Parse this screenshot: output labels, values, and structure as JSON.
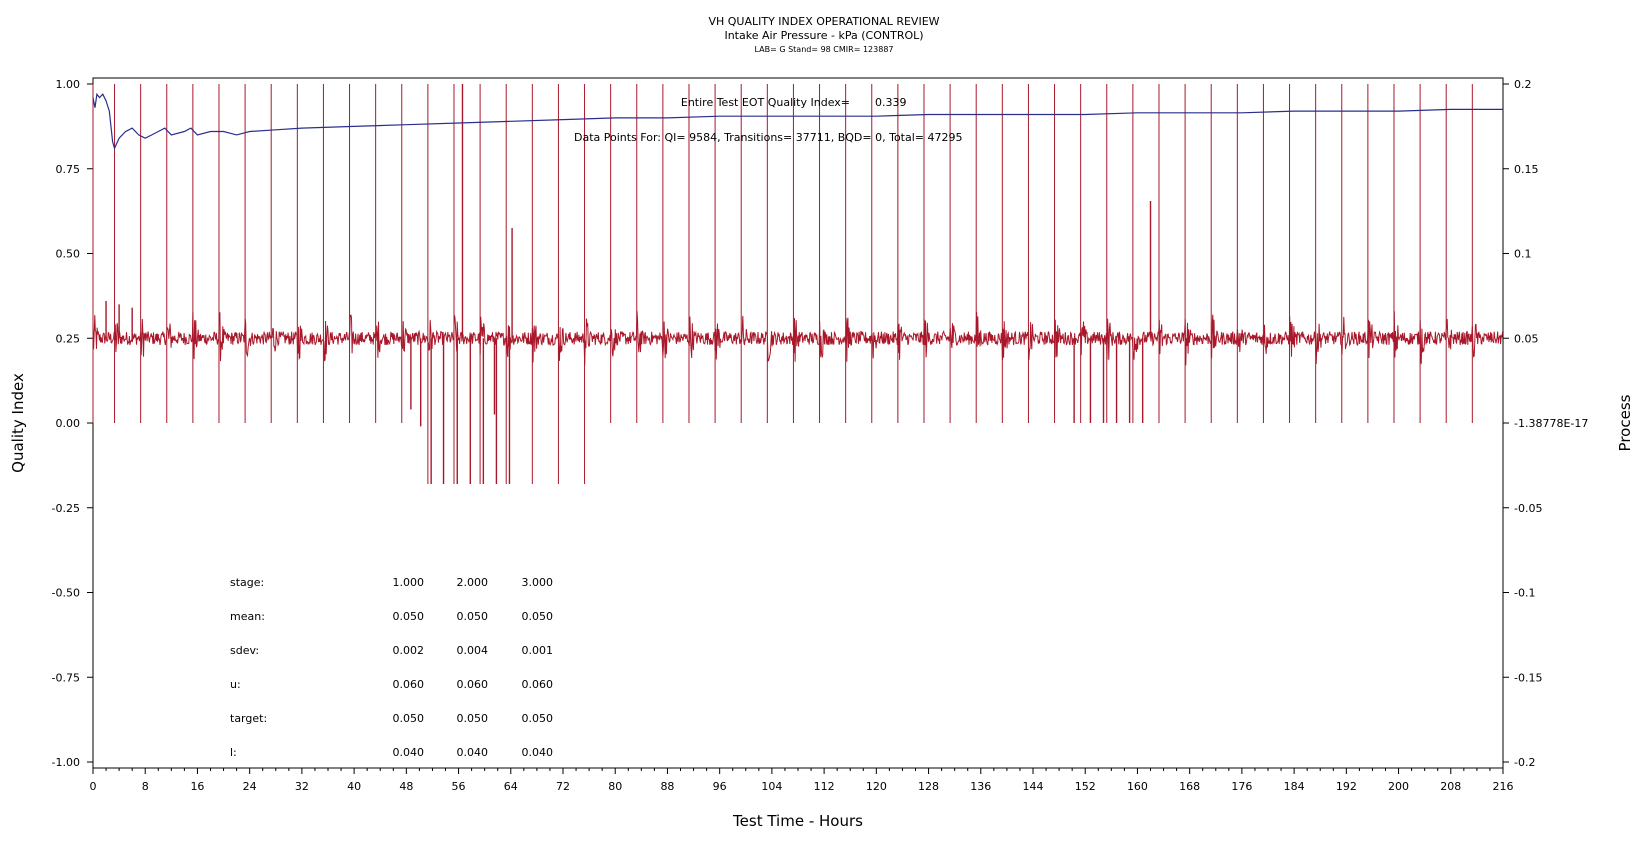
{
  "chart_data": {
    "type": "line",
    "title": "VH QUALITY INDEX OPERATIONAL REVIEW",
    "subtitle": "Intake Air Pressure - kPa (CONTROL)",
    "subtitle2": "LAB= G Stand= 98 CMIR= 123887",
    "xlabel": "Test Time - Hours",
    "ylabel_left": "Quality Index",
    "ylabel_right": "Process",
    "xlim": [
      0,
      216
    ],
    "ylim_left": [
      -1.0,
      1.0
    ],
    "ylim_right": [
      -0.2,
      0.2
    ],
    "x_ticks": [
      0,
      8,
      16,
      24,
      32,
      40,
      48,
      56,
      64,
      72,
      80,
      88,
      96,
      104,
      112,
      120,
      128,
      136,
      144,
      152,
      160,
      168,
      176,
      184,
      192,
      200,
      208,
      216
    ],
    "x_tick_labels": [
      "0",
      "8",
      "16",
      "24",
      "32",
      "40",
      "48",
      "56",
      "64",
      "72",
      "80",
      "88",
      "96",
      "104",
      "112",
      "120",
      "128",
      "136",
      "144",
      "152",
      "160",
      "168",
      "176",
      "184",
      "192",
      "200",
      "208",
      "216"
    ],
    "y_left_ticks": [
      1.0,
      0.75,
      0.5,
      0.25,
      0.0,
      -0.25,
      -0.5,
      -0.75,
      -1.0
    ],
    "y_left_tick_labels": [
      "1.00",
      "0.75",
      "0.50",
      "0.25",
      "0.00",
      "-0.25",
      "-0.50",
      "-0.75",
      "-1.00"
    ],
    "y_right_ticks": [
      0.2,
      0.15,
      0.1,
      0.05,
      0.0,
      -0.05,
      -0.1,
      -0.15,
      -0.2
    ],
    "y_right_tick_labels": [
      "0.2",
      "0.15",
      "0.1",
      "0.05",
      "-1.38778E-17",
      "-0.05",
      "-0.1",
      "-0.15",
      "-0.2"
    ],
    "grid": false,
    "series": [
      {
        "role": "quality-index",
        "axis": "left",
        "color": "#2b2f8c",
        "points": [
          [
            0.0,
            0.96
          ],
          [
            0.3,
            0.93
          ],
          [
            0.6,
            0.97
          ],
          [
            1.0,
            0.96
          ],
          [
            1.5,
            0.97
          ],
          [
            2.0,
            0.95
          ],
          [
            2.5,
            0.92
          ],
          [
            3.0,
            0.83
          ],
          [
            3.3,
            0.81
          ],
          [
            4,
            0.84
          ],
          [
            5,
            0.86
          ],
          [
            6,
            0.87
          ],
          [
            7,
            0.85
          ],
          [
            8,
            0.84
          ],
          [
            9,
            0.85
          ],
          [
            10,
            0.86
          ],
          [
            11,
            0.87
          ],
          [
            12,
            0.85
          ],
          [
            14,
            0.86
          ],
          [
            15,
            0.87
          ],
          [
            16,
            0.85
          ],
          [
            18,
            0.86
          ],
          [
            20,
            0.86
          ],
          [
            22,
            0.85
          ],
          [
            24,
            0.86
          ],
          [
            28,
            0.865
          ],
          [
            32,
            0.87
          ],
          [
            40,
            0.875
          ],
          [
            48,
            0.88
          ],
          [
            56,
            0.885
          ],
          [
            64,
            0.89
          ],
          [
            72,
            0.895
          ],
          [
            80,
            0.9
          ],
          [
            88,
            0.9
          ],
          [
            96,
            0.905
          ],
          [
            104,
            0.905
          ],
          [
            112,
            0.905
          ],
          [
            120,
            0.905
          ],
          [
            128,
            0.91
          ],
          [
            136,
            0.91
          ],
          [
            144,
            0.91
          ],
          [
            152,
            0.91
          ],
          [
            160,
            0.915
          ],
          [
            168,
            0.915
          ],
          [
            176,
            0.915
          ],
          [
            184,
            0.92
          ],
          [
            192,
            0.92
          ],
          [
            200,
            0.92
          ],
          [
            208,
            0.925
          ],
          [
            216,
            0.925
          ]
        ]
      },
      {
        "role": "process",
        "axis": "right",
        "color": "#a8182a",
        "baseline": 0.05,
        "noise_amplitude": 0.004,
        "burst_amplitude": 0.014,
        "transition_spike_top": 0.2,
        "transition_x": [
          0,
          3.3,
          7.3,
          11.3,
          15.3,
          19.3,
          23.3,
          27.3,
          31.3,
          35.3,
          39.3,
          43.3,
          47.3,
          51.3,
          55.3,
          59.3,
          63.3,
          67.3,
          71.3,
          75.3,
          79.3,
          83.3,
          87.3,
          91.3,
          95.3,
          99.3,
          103.3,
          107.3,
          111.3,
          115.3,
          119.3,
          123.3,
          127.3,
          131.3,
          135.3,
          139.3,
          143.3,
          147.3,
          151.3,
          155.3,
          159.3,
          163.3,
          167.3,
          171.3,
          175.3,
          179.3,
          183.3,
          187.3,
          191.3,
          195.3,
          199.3,
          203.3,
          207.3,
          211.3
        ],
        "transition_low": [
          0,
          0,
          0,
          0,
          0,
          0,
          0,
          0,
          0,
          0,
          0,
          0,
          0,
          -0.036,
          -0.036,
          -0.036,
          -0.036,
          -0.036,
          -0.036,
          -0.036,
          0,
          0,
          0,
          0,
          0,
          0,
          0,
          0,
          0,
          0,
          0,
          0,
          0,
          0,
          0,
          0,
          0,
          0,
          0,
          0,
          0,
          0,
          0,
          0,
          0,
          0,
          0,
          0,
          0,
          0,
          0,
          0,
          0,
          0
        ],
        "extra_dips": [
          [
            51.8,
            -0.036
          ],
          [
            53.7,
            -0.036
          ],
          [
            55.8,
            -0.036
          ],
          [
            57.8,
            -0.036
          ],
          [
            59.8,
            -0.036
          ],
          [
            61.8,
            -0.036
          ],
          [
            63.8,
            -0.036
          ],
          [
            48.7,
            0.008
          ],
          [
            50.2,
            -0.002
          ],
          [
            61.5,
            0.005
          ],
          [
            150.3,
            0.0
          ],
          [
            152.8,
            0.0
          ],
          [
            154.8,
            0.0
          ],
          [
            156.8,
            0.0
          ],
          [
            158.8,
            0.0
          ],
          [
            160.8,
            0.0
          ]
        ],
        "spikes": [
          [
            2.0,
            0.072
          ],
          [
            4.0,
            0.07
          ],
          [
            6.0,
            0.068
          ],
          [
            56.6,
            0.2
          ],
          [
            64.2,
            0.115
          ],
          [
            162.0,
            0.131
          ]
        ]
      }
    ],
    "annotations": {
      "eot_label": "Entire Test EOT Quality Index=",
      "eot_value": "0.339",
      "datapoints_text": "Data Points For: QI=  9584, Transitions= 37711, BQD=     0, Total= 47295"
    },
    "stats_table": {
      "rows": [
        {
          "label": "stage:",
          "values": [
            "1.000",
            "2.000",
            "3.000"
          ]
        },
        {
          "label": "mean:",
          "values": [
            "0.050",
            "0.050",
            "0.050"
          ]
        },
        {
          "label": "sdev:",
          "values": [
            "0.002",
            "0.004",
            "0.001"
          ]
        },
        {
          "label": "u:",
          "values": [
            "0.060",
            "0.060",
            "0.060"
          ]
        },
        {
          "label": "target:",
          "values": [
            "0.050",
            "0.050",
            "0.050"
          ]
        },
        {
          "label": "l:",
          "values": [
            "0.040",
            "0.040",
            "0.040"
          ]
        }
      ]
    }
  }
}
